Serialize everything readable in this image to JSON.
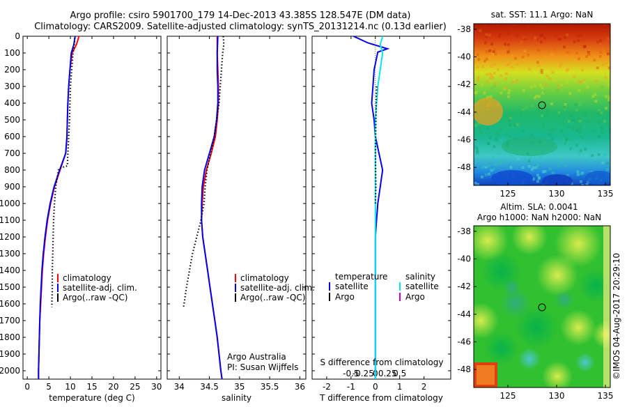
{
  "header": {
    "line1": "Argo profile: csiro 5901700_179 14-Dec-2013 43.385S 128.547E (DM data)",
    "line2": "Climatology: CARS2009. Satellite-adjusted climatology: synTS_20131214.nc (0.13d earlier)"
  },
  "colors": {
    "climatology": "#ff0000",
    "satellite": "#0000ee",
    "argo": "#000000",
    "satellite_salinity": "#00e5ee",
    "argo_salinity": "#cc00cc"
  },
  "panel_temperature": {
    "xlabel": "temperature (deg C)",
    "legend": [
      "climatology",
      "satellite-adj. clim.",
      "Argo(..raw -QC)"
    ]
  },
  "panel_salinity": {
    "xlabel": "salinity",
    "legend": [
      "climatology",
      "satellite-adj. clim.",
      "Argo(..raw -QC)"
    ],
    "credit_line1": "Argo Australia",
    "credit_line2": "PI: Susan Wijffels"
  },
  "panel_difference": {
    "xlabel": "T difference from climatology",
    "top_label": "S difference from climatology",
    "legend_temp_title": "temperature",
    "legend_sal_title": "salinity",
    "legend_satellite": "satellite",
    "legend_argo": "Argo"
  },
  "map_sst": {
    "title": "sat. SST: 11.1  Argo: NaN"
  },
  "map_sla": {
    "title1": "Altim. SLA: 0.0041",
    "title2": "Argo h1000: NaN h2000: NaN"
  },
  "watermark": "©IMOS 04-Aug-2017 20:29:10",
  "chart_data": [
    {
      "type": "line",
      "name": "temperature-profile",
      "xlabel": "temperature (deg C)",
      "xlim": [
        -1,
        31
      ],
      "ylim": [
        0,
        2050
      ],
      "y_reversed": true,
      "xticks": [
        0,
        5,
        10,
        15,
        20,
        25,
        30
      ],
      "yticks": [
        0,
        100,
        200,
        300,
        400,
        500,
        600,
        700,
        800,
        900,
        1000,
        1100,
        1200,
        1300,
        1400,
        1500,
        1600,
        1700,
        1800,
        1900,
        2000
      ],
      "series": [
        {
          "name": "climatology",
          "color": "#ff0000",
          "points": [
            [
              12,
              0
            ],
            [
              11.4,
              50
            ],
            [
              10.4,
              100
            ],
            [
              9.9,
              200
            ],
            [
              9.6,
              300
            ],
            [
              9.4,
              400
            ],
            [
              9.3,
              500
            ],
            [
              9.2,
              600
            ],
            [
              8.9,
              700
            ],
            [
              7.6,
              800
            ],
            [
              6.3,
              900
            ],
            [
              5.4,
              1000
            ],
            [
              4.7,
              1100
            ],
            [
              4.2,
              1200
            ],
            [
              3.8,
              1300
            ],
            [
              3.5,
              1400
            ],
            [
              3.3,
              1500
            ],
            [
              3.1,
              1600
            ],
            [
              2.9,
              1700
            ],
            [
              2.8,
              1800
            ],
            [
              2.7,
              1900
            ],
            [
              2.6,
              2000
            ],
            [
              2.6,
              2050
            ]
          ]
        },
        {
          "name": "satellite-adj. clim.",
          "color": "#0000ee",
          "points": [
            [
              11.1,
              0
            ],
            [
              10.8,
              50
            ],
            [
              10.2,
              100
            ],
            [
              9.9,
              200
            ],
            [
              9.6,
              300
            ],
            [
              9.4,
              400
            ],
            [
              9.3,
              500
            ],
            [
              9.2,
              600
            ],
            [
              8.9,
              700
            ],
            [
              7.5,
              800
            ],
            [
              6.2,
              900
            ],
            [
              5.3,
              1000
            ],
            [
              4.6,
              1100
            ],
            [
              4.1,
              1200
            ],
            [
              3.7,
              1300
            ],
            [
              3.4,
              1400
            ],
            [
              3.2,
              1500
            ],
            [
              3.0,
              1600
            ],
            [
              2.9,
              1700
            ],
            [
              2.8,
              1800
            ],
            [
              2.7,
              1900
            ],
            [
              2.6,
              2000
            ],
            [
              2.6,
              2050
            ]
          ]
        },
        {
          "name": "Argo(..raw -QC)",
          "color": "#000000",
          "style": "dotted",
          "points": [
            [
              11.0,
              10
            ],
            [
              10.9,
              50
            ],
            [
              10.6,
              100
            ],
            [
              10.3,
              200
            ],
            [
              10.0,
              300
            ],
            [
              9.9,
              400
            ],
            [
              9.8,
              500
            ],
            [
              9.6,
              600
            ],
            [
              9.4,
              700
            ],
            [
              9.3,
              775
            ],
            [
              7.3,
              790
            ],
            [
              6.6,
              900
            ],
            [
              6.3,
              1000
            ],
            [
              6.1,
              1100
            ],
            [
              6.0,
              1200
            ],
            [
              5.9,
              1300
            ],
            [
              5.8,
              1400
            ],
            [
              5.8,
              1500
            ],
            [
              5.7,
              1600
            ],
            [
              5.7,
              1620
            ]
          ]
        }
      ]
    },
    {
      "type": "line",
      "name": "salinity-profile",
      "xlabel": "salinity",
      "xlim": [
        33.8,
        36.1
      ],
      "ylim": [
        0,
        2050
      ],
      "y_reversed": true,
      "xticks": [
        34,
        34.5,
        35,
        35.5,
        36
      ],
      "series": [
        {
          "name": "climatology",
          "color": "#ff0000",
          "points": [
            [
              34.63,
              0
            ],
            [
              34.63,
              100
            ],
            [
              34.64,
              200
            ],
            [
              34.65,
              300
            ],
            [
              34.65,
              400
            ],
            [
              34.63,
              500
            ],
            [
              34.6,
              600
            ],
            [
              34.53,
              700
            ],
            [
              34.45,
              800
            ],
            [
              34.4,
              900
            ],
            [
              34.38,
              1000
            ],
            [
              34.37,
              1100
            ],
            [
              34.39,
              1200
            ],
            [
              34.43,
              1300
            ],
            [
              34.47,
              1400
            ],
            [
              34.51,
              1500
            ],
            [
              34.55,
              1600
            ],
            [
              34.59,
              1700
            ],
            [
              34.63,
              1800
            ],
            [
              34.66,
              1900
            ],
            [
              34.69,
              2000
            ],
            [
              34.71,
              2050
            ]
          ]
        },
        {
          "name": "satellite-adj. clim.",
          "color": "#0000ee",
          "points": [
            [
              34.64,
              0
            ],
            [
              34.63,
              100
            ],
            [
              34.63,
              200
            ],
            [
              34.64,
              300
            ],
            [
              34.64,
              400
            ],
            [
              34.62,
              500
            ],
            [
              34.58,
              600
            ],
            [
              34.5,
              700
            ],
            [
              34.42,
              800
            ],
            [
              34.38,
              900
            ],
            [
              34.37,
              1000
            ],
            [
              34.37,
              1100
            ],
            [
              34.39,
              1200
            ],
            [
              34.43,
              1300
            ],
            [
              34.47,
              1400
            ],
            [
              34.51,
              1500
            ],
            [
              34.55,
              1600
            ],
            [
              34.59,
              1700
            ],
            [
              34.63,
              1800
            ],
            [
              34.66,
              1900
            ],
            [
              34.69,
              2000
            ],
            [
              34.71,
              2050
            ]
          ]
        },
        {
          "name": "Argo(..raw -QC)",
          "color": "#000000",
          "style": "dotted",
          "points": [
            [
              34.73,
              0
            ],
            [
              34.74,
              50
            ],
            [
              34.72,
              100
            ],
            [
              34.7,
              200
            ],
            [
              34.68,
              300
            ],
            [
              34.66,
              400
            ],
            [
              34.62,
              500
            ],
            [
              34.58,
              600
            ],
            [
              34.52,
              700
            ],
            [
              34.46,
              800
            ],
            [
              34.43,
              900
            ],
            [
              34.41,
              1000
            ],
            [
              34.36,
              1100
            ],
            [
              34.29,
              1200
            ],
            [
              34.22,
              1300
            ],
            [
              34.17,
              1400
            ],
            [
              34.12,
              1500
            ],
            [
              34.08,
              1600
            ],
            [
              34.07,
              1620
            ]
          ]
        }
      ]
    },
    {
      "type": "line",
      "name": "difference-profile",
      "xlabel": "T difference from climatology",
      "xlim": [
        -2.6,
        3.1
      ],
      "ylim": [
        0,
        2050
      ],
      "y_reversed": true,
      "xticks": [
        -2,
        -1,
        0,
        1,
        2
      ],
      "top_xticks": [
        "-0.5",
        "-0.25",
        "0",
        "0.25",
        "0.5"
      ],
      "series": [
        {
          "name": "temperature satellite",
          "color": "#0000ee",
          "points": [
            [
              -0.9,
              0
            ],
            [
              -0.3,
              40
            ],
            [
              0.5,
              75
            ],
            [
              0.1,
              95
            ],
            [
              -0.05,
              200
            ],
            [
              -0.1,
              300
            ],
            [
              -0.15,
              400
            ],
            [
              -0.05,
              500
            ],
            [
              0,
              600
            ],
            [
              0.15,
              700
            ],
            [
              0.3,
              800
            ],
            [
              0.2,
              900
            ],
            [
              0.1,
              1000
            ],
            [
              0.05,
              1100
            ],
            [
              0,
              1200
            ],
            [
              0,
              1300
            ],
            [
              0,
              2050
            ]
          ]
        },
        {
          "name": "salinity satellite",
          "color": "#00e5ee",
          "points": [
            [
              0.3,
              0
            ],
            [
              0.2,
              50
            ],
            [
              0.3,
              100
            ],
            [
              0.2,
              200
            ],
            [
              0.1,
              300
            ],
            [
              0.05,
              400
            ],
            [
              0,
              500
            ],
            [
              0,
              2050
            ]
          ]
        },
        {
          "name": "temperature Argo",
          "color": "#000000",
          "style": "dotted",
          "points": [
            [
              0.05,
              300
            ],
            [
              0.02,
              500
            ],
            [
              0,
              700
            ],
            [
              0.02,
              900
            ],
            [
              0,
              1000
            ]
          ]
        }
      ]
    },
    {
      "type": "heatmap",
      "name": "sst-map",
      "title": "sat. SST: 11.1  Argo: NaN",
      "xlim": [
        121.5,
        135.5
      ],
      "ylim": [
        -49.3,
        -37.6
      ],
      "xticks": [
        125,
        130,
        135
      ],
      "yticks": [
        -38,
        -40,
        -42,
        -44,
        -46,
        -48
      ],
      "marker": [
        128.547,
        -43.385
      ]
    },
    {
      "type": "heatmap",
      "name": "sla-map",
      "title": "Altim. SLA: 0.0041 / Argo h1000: NaN h2000: NaN",
      "xlim": [
        121.5,
        135.5
      ],
      "ylim": [
        -49.3,
        -37.6
      ],
      "xticks": [
        125,
        130,
        135
      ],
      "yticks": [
        -38,
        -40,
        -42,
        -44,
        -46,
        -48
      ],
      "marker": [
        128.547,
        -43.385
      ]
    }
  ]
}
